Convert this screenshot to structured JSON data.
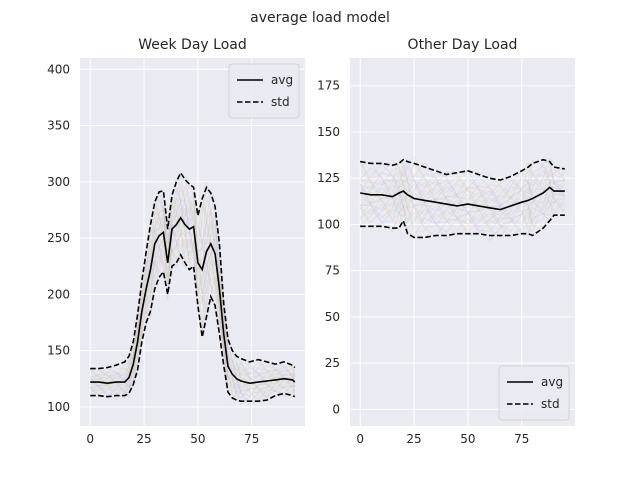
{
  "figure_title": "average load model",
  "chart_data": [
    {
      "type": "line",
      "title": "Week Day Load",
      "xlabel": "",
      "ylabel": "",
      "xlim": [
        -4.75,
        99.75
      ],
      "ylim": [
        83,
        410
      ],
      "xticks": [
        0,
        25,
        50,
        75
      ],
      "yticks": [
        100,
        150,
        200,
        250,
        300,
        350,
        400
      ],
      "grid": true,
      "legend_position": "upper right",
      "x": [
        0,
        4,
        8,
        12,
        16,
        18,
        20,
        22,
        24,
        26,
        28,
        30,
        32,
        34,
        36,
        38,
        40,
        42,
        44,
        46,
        48,
        50,
        52,
        54,
        56,
        58,
        60,
        62,
        64,
        66,
        68,
        70,
        74,
        78,
        82,
        86,
        90,
        94,
        95
      ],
      "series": [
        {
          "name": "avg",
          "style": "solid",
          "color": "#000000",
          "values": [
            122,
            122,
            121,
            122,
            122,
            126,
            138,
            158,
            185,
            205,
            222,
            245,
            252,
            255,
            228,
            258,
            262,
            268,
            262,
            258,
            260,
            228,
            222,
            238,
            245,
            236,
            205,
            165,
            136,
            129,
            125,
            123,
            121,
            122,
            123,
            124,
            125,
            124,
            122
          ]
        },
        {
          "name": "std",
          "style": "dashed",
          "color": "#000000",
          "values": [
            134,
            134,
            135,
            137,
            140,
            145,
            158,
            182,
            212,
            238,
            262,
            282,
            291,
            292,
            258,
            288,
            300,
            308,
            302,
            298,
            295,
            270,
            285,
            295,
            290,
            278,
            245,
            192,
            160,
            150,
            145,
            143,
            140,
            142,
            140,
            138,
            140,
            137,
            135
          ]
        },
        {
          "name": "",
          "style": "dashed",
          "color": "#000000",
          "values": [
            110,
            110,
            109,
            110,
            110,
            112,
            120,
            133,
            158,
            175,
            185,
            205,
            215,
            220,
            200,
            225,
            228,
            235,
            228,
            222,
            225,
            190,
            162,
            180,
            198,
            190,
            165,
            137,
            113,
            108,
            106,
            105,
            105,
            105,
            106,
            110,
            112,
            110,
            109
          ]
        }
      ]
    },
    {
      "type": "line",
      "title": "Other Day Load",
      "xlabel": "",
      "ylabel": "",
      "xlim": [
        -4.75,
        99.75
      ],
      "ylim": [
        -9,
        190
      ],
      "xticks": [
        0,
        25,
        50,
        75
      ],
      "yticks": [
        0,
        25,
        50,
        75,
        100,
        125,
        150,
        175
      ],
      "grid": true,
      "legend_position": "lower right",
      "x": [
        0,
        5,
        10,
        15,
        18,
        20,
        22,
        25,
        30,
        35,
        40,
        45,
        50,
        55,
        60,
        65,
        70,
        75,
        78,
        80,
        85,
        88,
        90,
        95
      ],
      "series": [
        {
          "name": "avg",
          "style": "solid",
          "color": "#000000",
          "values": [
            117,
            116,
            116,
            115,
            117,
            118,
            116,
            114,
            113,
            112,
            111,
            110,
            111,
            110,
            109,
            108,
            110,
            112,
            113,
            114,
            117,
            120,
            118,
            118
          ]
        },
        {
          "name": "std",
          "style": "dashed",
          "color": "#000000",
          "values": [
            134,
            133,
            133,
            132,
            133,
            135,
            134,
            133,
            131,
            129,
            127,
            128,
            129,
            127,
            125,
            124,
            126,
            129,
            131,
            133,
            135,
            134,
            131,
            130
          ]
        },
        {
          "name": "",
          "style": "dashed",
          "color": "#000000",
          "values": [
            99,
            99,
            99,
            98,
            98,
            102,
            95,
            93,
            93,
            94,
            94,
            95,
            95,
            95,
            94,
            94,
            94,
            95,
            95,
            94,
            98,
            102,
            105,
            105
          ]
        }
      ]
    }
  ]
}
